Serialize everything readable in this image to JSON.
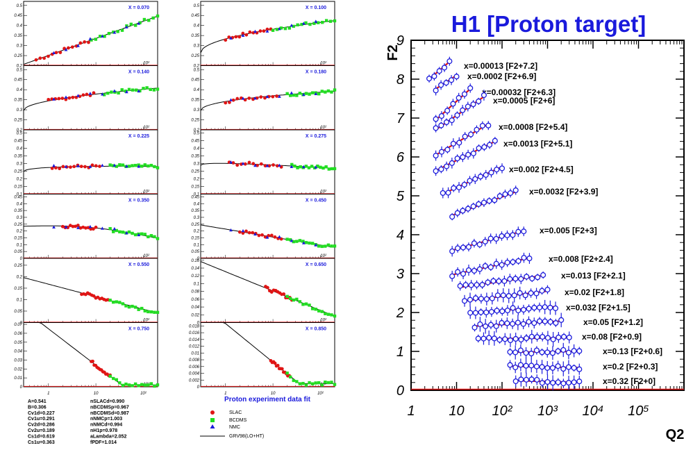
{
  "colors": {
    "slac": "#e01515",
    "bcdms": "#22dd22",
    "nmc": "#1a1adc",
    "fit": "#000000",
    "h1_point": "#1a1adc",
    "h1_line": "#e01515"
  },
  "params": [
    [
      "A=0.541",
      "nSLACd=0.990"
    ],
    [
      "B=0.306",
      "nBCDMSp=0.967"
    ],
    [
      "Cv1d=0.227",
      "nBCDMSd=0.987"
    ],
    [
      "Cv1u=0.291",
      "nNMCp=1.003"
    ],
    [
      "Cv2d=0.286",
      "nNMCd=0.994"
    ],
    [
      "Cv2u=0.189",
      "nH1p=0.978"
    ],
    [
      "Cs1d=0.619",
      "aLambda=2.052"
    ],
    [
      "Cs1u=0.363",
      "fPDF=1.014"
    ]
  ],
  "fit_caption": "Proton experiment data fit",
  "chart_data": [
    {
      "type": "scatter",
      "xscale": "log",
      "xlim": [
        0.3,
        200
      ],
      "x_tick_labels": [
        "1",
        "10",
        "10²"
      ],
      "legend": [
        "SLAC",
        "BCDMS",
        "NMC",
        "GRV98(LO+HT)"
      ],
      "panels": [
        {
          "label": "X = 0.070",
          "ylim": [
            0.2,
            0.52
          ],
          "yticks": [
            "0.5",
            "0.45",
            "0.4",
            "0.35",
            "0.3",
            "0.25",
            "0.2"
          ]
        },
        {
          "label": "X = 0.100",
          "ylim": [
            0.2,
            0.52
          ],
          "yticks": [
            "0.5",
            "0.45",
            "0.4",
            "0.35",
            "0.3",
            "0.25",
            "0.2"
          ]
        },
        {
          "label": "X = 0.140",
          "ylim": [
            0.2,
            0.52
          ],
          "yticks": [
            "0.5",
            "0.45",
            "0.4",
            "0.35",
            "0.3",
            "0.25",
            "0.2"
          ]
        },
        {
          "label": "X = 0.180",
          "ylim": [
            0.2,
            0.52
          ],
          "yticks": [
            "0.5",
            "0.45",
            "0.4",
            "0.35",
            "0.3",
            "0.25",
            "0.2"
          ]
        },
        {
          "label": "X = 0.225",
          "ylim": [
            0.1,
            0.52
          ],
          "yticks": [
            "0.5",
            "0.45",
            "0.4",
            "0.35",
            "0.3",
            "0.25",
            "0.2",
            "0.15",
            "0.1"
          ]
        },
        {
          "label": "X = 0.275",
          "ylim": [
            0.1,
            0.52
          ],
          "yticks": [
            "0.5",
            "0.45",
            "0.4",
            "0.35",
            "0.3",
            "0.25",
            "0.2",
            "0.15",
            "0.1"
          ]
        },
        {
          "label": "X = 0.350",
          "ylim": [
            0,
            0.47
          ],
          "yticks": [
            "0.45",
            "0.4",
            "0.35",
            "0.3",
            "0.25",
            "0.2",
            "0.15",
            "0.1",
            "0.05",
            "0"
          ]
        },
        {
          "label": "X = 0.450",
          "ylim": [
            0,
            0.47
          ],
          "yticks": [
            "0.45",
            "0.4",
            "0.35",
            "0.3",
            "0.25",
            "0.2",
            "0.15",
            "0.1",
            "0.05",
            "0"
          ]
        },
        {
          "label": "X = 0.550",
          "ylim": [
            0,
            0.28
          ],
          "yticks": [
            "0.25",
            "0.2",
            "0.15",
            "0.1",
            "0.05",
            "0"
          ]
        },
        {
          "label": "X = 0.650",
          "ylim": [
            0,
            0.165
          ],
          "yticks": [
            "0.16",
            "0.14",
            "0.12",
            "0.1",
            "0.08",
            "0.06",
            "0.04",
            "0.02",
            "0"
          ]
        },
        {
          "label": "X = 0.750",
          "ylim": [
            0,
            0.072
          ],
          "yticks": [
            "0.07",
            "0.06",
            "0.05",
            "0.04",
            "0.03",
            "0.02",
            "0.01",
            "0"
          ]
        },
        {
          "label": "X = 0.850",
          "ylim": [
            0,
            0.019
          ],
          "yticks": [
            "0.018",
            "0.016",
            "0.014",
            "0.012",
            "0.01",
            "0.008",
            "0.006",
            "0.004",
            "0.002",
            "0"
          ]
        }
      ]
    },
    {
      "type": "line",
      "title": "H1 [Proton target]",
      "xlabel": "Q2",
      "ylabel": "F2",
      "xscale": "log",
      "xlim": [
        1,
        1000000
      ],
      "ylim": [
        0,
        9
      ],
      "x_tick_labels": [
        "1",
        "10",
        "10²",
        "10³",
        "10⁴",
        "10⁵"
      ],
      "y_tick_labels": [
        "0",
        "1",
        "2",
        "3",
        "4",
        "5",
        "6",
        "7",
        "8",
        "9"
      ],
      "series": [
        {
          "name": "x=0.00013 [F2+7.2]",
          "q2": [
            2.5,
            7
          ],
          "f2": [
            8.0,
            8.45
          ]
        },
        {
          "name": "x=0.0002 [F2+6.9]",
          "q2": [
            3.5,
            10
          ],
          "f2": [
            7.75,
            8.1
          ]
        },
        {
          "name": "x=0.00032 [F2+6.3]",
          "q2": [
            3.5,
            20
          ],
          "f2": [
            6.95,
            7.75
          ]
        },
        {
          "name": "x=0.0005 [F2+6]",
          "q2": [
            3.5,
            40
          ],
          "f2": [
            6.7,
            7.55
          ]
        },
        {
          "name": "x=0.0008 [F2+5.4]",
          "q2": [
            3.5,
            50
          ],
          "f2": [
            6.05,
            6.85
          ]
        },
        {
          "name": "x=0.0013 [F2+5.1]",
          "q2": [
            3.5,
            70
          ],
          "f2": [
            5.65,
            6.4
          ]
        },
        {
          "name": "x=0.002 [F2+4.5]",
          "q2": [
            5,
            100
          ],
          "f2": [
            5.05,
            5.75
          ]
        },
        {
          "name": "x=0.0032 [F2+3.9]",
          "q2": [
            8,
            200
          ],
          "f2": [
            4.5,
            5.1
          ]
        },
        {
          "name": "x=0.005 [F2+3]",
          "q2": [
            8,
            300
          ],
          "f2": [
            3.6,
            4.1
          ]
        },
        {
          "name": "x=0.008 [F2+2.4]",
          "q2": [
            8,
            400
          ],
          "f2": [
            2.97,
            3.4
          ]
        },
        {
          "name": "x=0.013 [F2+2.1]",
          "q2": [
            12,
            800
          ],
          "f2": [
            2.65,
            2.95
          ]
        },
        {
          "name": "x=0.02 [F2+1.8]",
          "q2": [
            15,
            1000
          ],
          "f2": [
            2.3,
            2.55
          ]
        },
        {
          "name": "x=0.032 [F2+1.5]",
          "q2": [
            20,
            1500
          ],
          "f2": [
            2.0,
            2.15
          ]
        },
        {
          "name": "x=0.05 [F2+1.2]",
          "q2": [
            25,
            2000
          ],
          "f2": [
            1.65,
            1.78
          ]
        },
        {
          "name": "x=0.08 [F2+0.9]",
          "q2": [
            30,
            3000
          ],
          "f2": [
            1.32,
            1.35
          ]
        },
        {
          "name": "x=0.13 [F2+0.6]",
          "q2": [
            150,
            5000
          ],
          "f2": [
            0.98,
            1.0
          ]
        },
        {
          "name": "x=0.2 [F2+0.3]",
          "q2": [
            150,
            5000
          ],
          "f2": [
            0.62,
            0.58
          ]
        },
        {
          "name": "x=0.32 [F2+0]",
          "q2": [
            200,
            5000
          ],
          "f2": [
            0.25,
            0.2
          ]
        }
      ]
    }
  ]
}
